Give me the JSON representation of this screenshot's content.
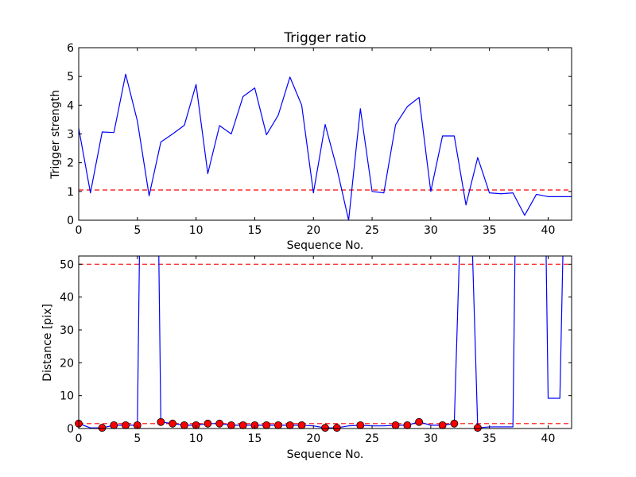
{
  "colors": {
    "line": "#0000ff",
    "threshold": "#ff0000",
    "marker_fill": "#ff0000",
    "marker_edge": "#000000",
    "background": "#ffffff",
    "axes": "#000000"
  },
  "chart_data": [
    {
      "type": "line",
      "title": "Trigger ratio",
      "xlabel": "Sequence No.",
      "ylabel": "Trigger strength",
      "xlim": [
        0,
        42
      ],
      "ylim": [
        0,
        6
      ],
      "xticks": [
        "0",
        "5",
        "10",
        "15",
        "20",
        "25",
        "30",
        "35",
        "40"
      ],
      "yticks": [
        "0",
        "1",
        "2",
        "3",
        "4",
        "5",
        "6"
      ],
      "grid": false,
      "x": [
        0,
        1,
        2,
        3,
        4,
        5,
        6,
        7,
        8,
        9,
        10,
        11,
        12,
        13,
        14,
        15,
        16,
        17,
        18,
        19,
        20,
        21,
        22,
        23,
        24,
        25,
        26,
        27,
        28,
        29,
        30,
        31,
        32,
        33,
        34,
        35,
        36,
        37,
        38,
        39,
        40,
        41,
        42
      ],
      "series": [
        {
          "values": [
            3.2,
            0.95,
            3.07,
            3.05,
            5.08,
            3.45,
            0.85,
            2.72,
            3.0,
            3.3,
            4.72,
            1.62,
            3.29,
            3.0,
            4.3,
            4.6,
            2.97,
            3.65,
            4.98,
            4.0,
            0.95,
            3.33,
            1.8,
            0.0,
            3.88,
            1.0,
            0.95,
            3.32,
            3.95,
            4.27,
            1.0,
            2.93,
            2.93,
            0.53,
            2.18,
            0.95,
            0.92,
            0.95,
            0.17,
            0.9,
            0.82,
            0.82,
            0.82
          ]
        }
      ],
      "hlines": [
        1.05
      ]
    },
    {
      "type": "line",
      "title": "",
      "xlabel": "Sequence No.",
      "ylabel": "Distance [pix]",
      "xlim": [
        0,
        42
      ],
      "ylim": [
        0,
        52.5
      ],
      "xticks": [
        "0",
        "5",
        "10",
        "15",
        "20",
        "25",
        "30",
        "35",
        "40"
      ],
      "yticks": [
        "0",
        "10",
        "20",
        "30",
        "40",
        "50"
      ],
      "grid": false,
      "x": [
        0,
        1,
        2,
        3,
        4,
        5,
        5.2,
        6.8,
        7,
        8,
        9,
        10,
        11,
        12,
        13,
        14,
        15,
        16,
        17,
        18,
        19,
        20,
        21,
        22,
        23,
        24,
        25,
        26,
        27,
        28,
        29,
        30,
        31,
        32,
        32.5,
        33.5,
        34,
        35,
        36,
        37,
        37.2,
        39.8,
        40,
        41,
        41.3
      ],
      "series": [
        {
          "values": [
            1.5,
            0.2,
            0.2,
            1.0,
            1.0,
            1.0,
            60,
            60,
            2.0,
            1.5,
            1.0,
            1.0,
            1.5,
            1.5,
            1.0,
            1.0,
            1.0,
            1.0,
            1.0,
            1.0,
            1.0,
            0.8,
            0.2,
            0.2,
            0.8,
            1.0,
            0.8,
            0.8,
            1.0,
            1.0,
            2.0,
            1.0,
            1.0,
            1.5,
            60,
            60,
            0.2,
            0.5,
            0.5,
            0.5,
            60,
            60,
            9.2,
            9.2,
            60
          ]
        }
      ],
      "markers": {
        "x": [
          0,
          2,
          3,
          4,
          5,
          7,
          8,
          9,
          10,
          11,
          12,
          13,
          14,
          15,
          16,
          17,
          18,
          19,
          21,
          22,
          24,
          27,
          28,
          29,
          31,
          32,
          34
        ],
        "y": [
          1.5,
          0.2,
          1.0,
          1.0,
          1.0,
          2.0,
          1.5,
          1.0,
          1.0,
          1.5,
          1.5,
          1.0,
          1.0,
          1.0,
          1.0,
          1.0,
          1.0,
          1.0,
          0.2,
          0.2,
          1.0,
          1.0,
          1.0,
          2.0,
          1.0,
          1.5,
          0.2
        ]
      },
      "hlines": [
        50.0,
        1.5
      ]
    }
  ]
}
